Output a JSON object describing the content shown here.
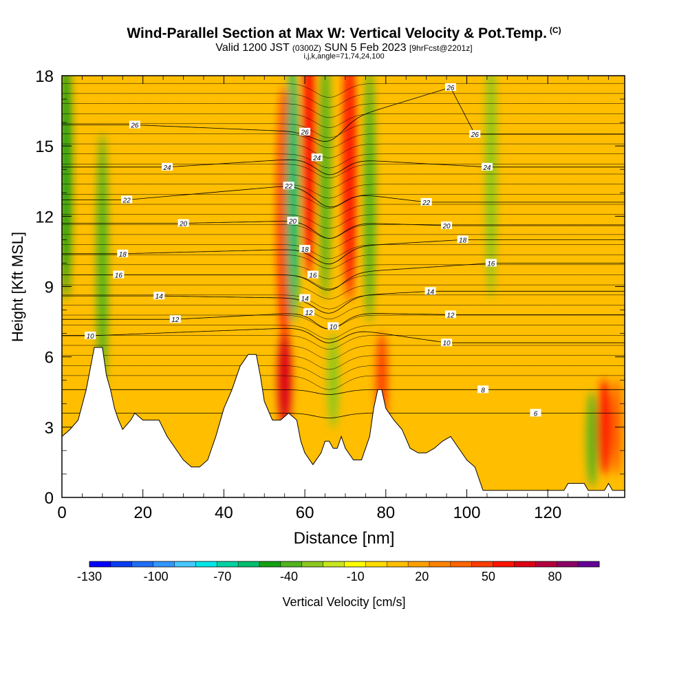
{
  "header": {
    "title": "Wind-Parallel Section at Max W: Vertical Velocity & Pot.Temp.",
    "title_mark": "(C)",
    "valid_prefix": "Valid 1200 JST",
    "valid_utc": "(0300Z)",
    "valid_date": "SUN 5 Feb 2023",
    "valid_fcst": "[9hrFcst@2201z]",
    "indices": "i,j,k,angle=71,74,24,100"
  },
  "chart_data": {
    "type": "heatmap",
    "xlabel": "Distance [nm]",
    "ylabel": "Height [Kft MSL]",
    "xlim": [
      0,
      139
    ],
    "ylim": [
      0,
      18
    ],
    "x_ticks": [
      "0",
      "20",
      "40",
      "60",
      "80",
      "100",
      "120"
    ],
    "y_ticks": [
      "0",
      "3",
      "6",
      "9",
      "12",
      "15",
      "18"
    ],
    "colorbar": {
      "label": "Vertical Velocity [cm/s]",
      "range": [
        -130,
        100
      ],
      "step": 10,
      "tick_labels": [
        "-130",
        "-100",
        "-70",
        "-40",
        "-10",
        "20",
        "50",
        "80"
      ],
      "tick_values": [
        -130,
        -100,
        -70,
        -40,
        -10,
        20,
        50,
        80
      ],
      "colors": [
        "#0000ff",
        "#0a3cf0",
        "#1e6ef5",
        "#3296ff",
        "#46c8ff",
        "#00e6e6",
        "#00d2a0",
        "#00be6e",
        "#14a014",
        "#50b41e",
        "#8cc81e",
        "#c8e61e",
        "#ffff00",
        "#ffdc00",
        "#ffbe00",
        "#ffa000",
        "#ff8200",
        "#ff6400",
        "#ff3c00",
        "#ff1400",
        "#dc0014",
        "#b4003c",
        "#8c0064",
        "#640096"
      ]
    },
    "terrain_kft": [
      [
        0,
        2.6
      ],
      [
        2,
        2.9
      ],
      [
        4,
        3.3
      ],
      [
        6,
        4.6
      ],
      [
        8,
        6.4
      ],
      [
        10,
        6.4
      ],
      [
        11,
        5.2
      ],
      [
        12,
        4.6
      ],
      [
        13,
        3.8
      ],
      [
        14,
        3.3
      ],
      [
        15,
        2.9
      ],
      [
        17,
        3.3
      ],
      [
        18,
        3.6
      ],
      [
        20,
        3.3
      ],
      [
        22,
        3.3
      ],
      [
        24,
        3.3
      ],
      [
        26,
        2.6
      ],
      [
        28,
        2.1
      ],
      [
        30,
        1.6
      ],
      [
        32,
        1.3
      ],
      [
        34,
        1.3
      ],
      [
        36,
        1.6
      ],
      [
        38,
        2.6
      ],
      [
        40,
        3.8
      ],
      [
        42,
        4.6
      ],
      [
        44,
        5.6
      ],
      [
        46,
        6.1
      ],
      [
        48,
        6.1
      ],
      [
        49,
        5.2
      ],
      [
        50,
        4.1
      ],
      [
        52,
        3.3
      ],
      [
        54,
        3.3
      ],
      [
        56,
        3.6
      ],
      [
        58,
        3.3
      ],
      [
        59,
        2.4
      ],
      [
        60,
        1.9
      ],
      [
        62,
        1.4
      ],
      [
        64,
        1.9
      ],
      [
        65,
        2.4
      ],
      [
        66,
        2.4
      ],
      [
        67,
        2.1
      ],
      [
        68,
        2.1
      ],
      [
        69,
        2.6
      ],
      [
        70,
        2.1
      ],
      [
        72,
        1.6
      ],
      [
        74,
        1.6
      ],
      [
        76,
        2.6
      ],
      [
        77,
        3.8
      ],
      [
        78,
        4.6
      ],
      [
        79,
        4.6
      ],
      [
        80,
        3.8
      ],
      [
        82,
        3.3
      ],
      [
        84,
        2.9
      ],
      [
        86,
        2.1
      ],
      [
        88,
        1.9
      ],
      [
        90,
        1.9
      ],
      [
        92,
        2.1
      ],
      [
        94,
        2.4
      ],
      [
        96,
        2.6
      ],
      [
        98,
        2.1
      ],
      [
        100,
        1.6
      ],
      [
        102,
        1.3
      ],
      [
        104,
        0.3
      ],
      [
        110,
        0.3
      ],
      [
        118,
        0.3
      ],
      [
        124,
        0.3
      ],
      [
        125,
        0.6
      ],
      [
        129,
        0.6
      ],
      [
        130,
        0.3
      ],
      [
        134,
        0.3
      ],
      [
        135,
        0.6
      ],
      [
        136,
        0.3
      ],
      [
        139,
        0.3
      ]
    ],
    "theta_contours": [
      {
        "level": "6",
        "x": 117,
        "y": 3.6
      },
      {
        "level": "8",
        "x": 104,
        "y": 4.6
      },
      {
        "level": "10",
        "x": 7,
        "y": 6.9
      },
      {
        "level": "10",
        "x": 67,
        "y": 7.3
      },
      {
        "level": "10",
        "x": 95,
        "y": 6.6
      },
      {
        "level": "12",
        "x": 28,
        "y": 7.6
      },
      {
        "level": "12",
        "x": 61,
        "y": 7.9
      },
      {
        "level": "12",
        "x": 96,
        "y": 7.8
      },
      {
        "level": "14",
        "x": 24,
        "y": 8.6
      },
      {
        "level": "14",
        "x": 60,
        "y": 8.5
      },
      {
        "level": "14",
        "x": 91,
        "y": 8.8
      },
      {
        "level": "16",
        "x": 14,
        "y": 9.5
      },
      {
        "level": "16",
        "x": 62,
        "y": 9.5
      },
      {
        "level": "16",
        "x": 106,
        "y": 10.0
      },
      {
        "level": "18",
        "x": 15,
        "y": 10.4
      },
      {
        "level": "18",
        "x": 60,
        "y": 10.6
      },
      {
        "level": "18",
        "x": 99,
        "y": 11.0
      },
      {
        "level": "20",
        "x": 30,
        "y": 11.7
      },
      {
        "level": "20",
        "x": 57,
        "y": 11.8
      },
      {
        "level": "20",
        "x": 95,
        "y": 11.6
      },
      {
        "level": "22",
        "x": 16,
        "y": 12.7
      },
      {
        "level": "22",
        "x": 56,
        "y": 13.3
      },
      {
        "level": "22",
        "x": 90,
        "y": 12.6
      },
      {
        "level": "24",
        "x": 26,
        "y": 14.1
      },
      {
        "level": "24",
        "x": 63,
        "y": 14.5
      },
      {
        "level": "24",
        "x": 105,
        "y": 14.1
      },
      {
        "level": "26",
        "x": 18,
        "y": 15.9
      },
      {
        "level": "26",
        "x": 60,
        "y": 15.6
      },
      {
        "level": "26",
        "x": 102,
        "y": 15.5
      },
      {
        "level": "26",
        "x": 96,
        "y": 17.5
      }
    ],
    "wind_cells": [
      {
        "x": 1,
        "y": 14,
        "w": -45
      },
      {
        "x": 10,
        "y": 10,
        "w": -40
      },
      {
        "x": 55,
        "y": 12,
        "w": 60
      },
      {
        "x": 57,
        "y": 13,
        "w": -60
      },
      {
        "x": 61,
        "y": 15,
        "w": 60
      },
      {
        "x": 65,
        "y": 14,
        "w": -40
      },
      {
        "x": 71,
        "y": 14,
        "w": 60
      },
      {
        "x": 76,
        "y": 13,
        "w": -35
      },
      {
        "x": 55,
        "y": 5,
        "w": 70
      },
      {
        "x": 67,
        "y": 5,
        "w": -30
      },
      {
        "x": 79,
        "y": 5,
        "w": 50
      },
      {
        "x": 106,
        "y": 14,
        "w": -25
      },
      {
        "x": 131,
        "y": 2.5,
        "w": -35
      },
      {
        "x": 134,
        "y": 3,
        "w": 60
      },
      {
        "x": 137,
        "y": 3,
        "w": 40
      }
    ]
  }
}
